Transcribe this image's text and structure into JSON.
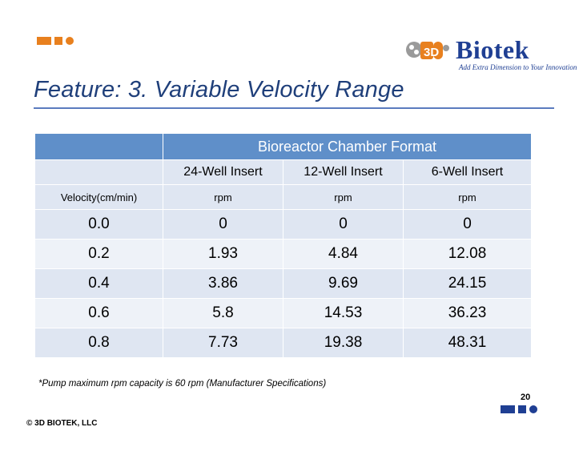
{
  "logo": {
    "brand": "Biotek",
    "tagline": "Add Extra Dimension to Your Innovation",
    "mark_text": "3D"
  },
  "title": "Feature: 3. Variable Velocity Range",
  "table": {
    "group_header": "Bioreactor Chamber Format",
    "columns": [
      "24-Well Insert",
      "12-Well Insert",
      "6-Well Insert"
    ],
    "row_header_label": "Velocity(cm/min)",
    "units": [
      "rpm",
      "rpm",
      "rpm"
    ],
    "rows": [
      {
        "velocity": "0.0",
        "values": [
          "0",
          "0",
          "0"
        ]
      },
      {
        "velocity": "0.2",
        "values": [
          "1.93",
          "4.84",
          "12.08"
        ]
      },
      {
        "velocity": "0.4",
        "values": [
          "3.86",
          "9.69",
          "24.15"
        ]
      },
      {
        "velocity": "0.6",
        "values": [
          "5.8",
          "14.53",
          "36.23"
        ]
      },
      {
        "velocity": "0.8",
        "values": [
          "7.73",
          "19.38",
          "48.31"
        ]
      }
    ]
  },
  "footnote": "*Pump maximum rpm capacity is 60 rpm (Manufacturer Specifications)",
  "page_number": "20",
  "copyright": "© 3D BIOTEK, LLC",
  "colors": {
    "accent_orange": "#e8801e",
    "brand_blue": "#1f3f93",
    "table_header": "#5f8fc9",
    "table_band": "#dfe6f2"
  }
}
